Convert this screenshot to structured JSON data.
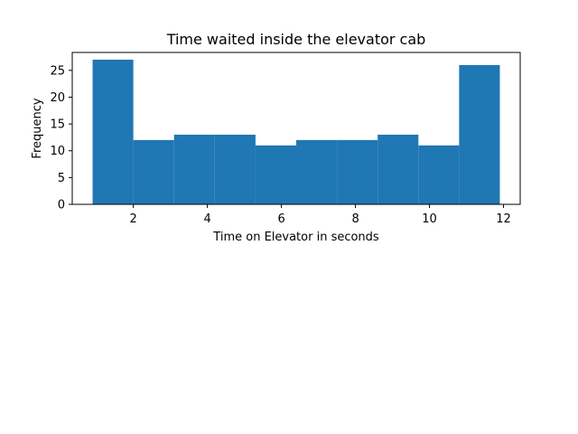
{
  "chart_data": {
    "type": "bar",
    "title": "Time waited inside the elevator cab",
    "xlabel": "Time on Elevator in seconds",
    "ylabel": "Frequency",
    "bin_edges": [
      0.9,
      2.0,
      3.1,
      4.2,
      5.3,
      6.4,
      7.5,
      8.6,
      9.7,
      10.8,
      11.9
    ],
    "values": [
      27,
      12,
      13,
      13,
      11,
      12,
      12,
      13,
      11,
      26
    ],
    "xlim": [
      0.35,
      12.45
    ],
    "ylim": [
      0,
      28.35
    ],
    "xticks": [
      2,
      4,
      6,
      8,
      10,
      12
    ],
    "yticks": [
      0,
      5,
      10,
      15,
      20,
      25
    ],
    "bar_color": "#1f77b4",
    "grid": false,
    "legend": "none"
  }
}
